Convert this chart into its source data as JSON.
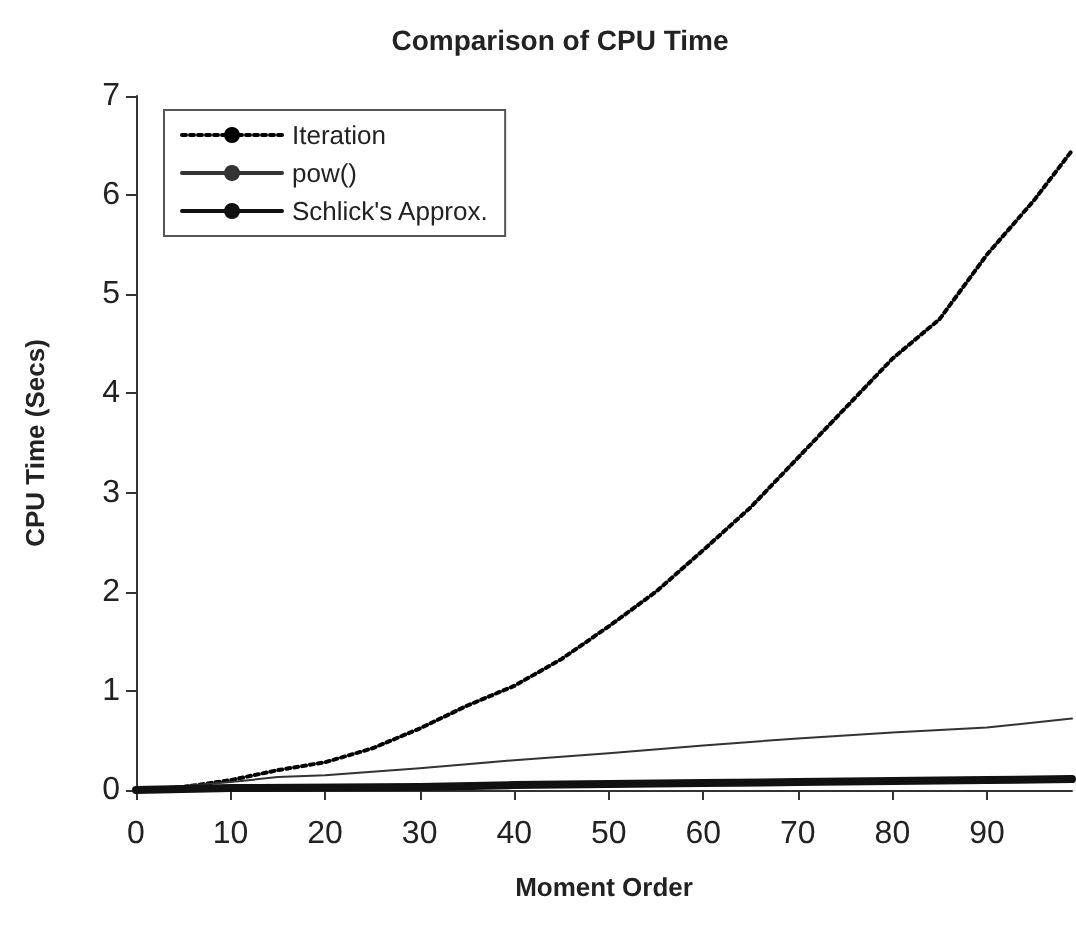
{
  "chart_data": {
    "type": "line",
    "title": "Comparison of CPU Time",
    "xlabel": "Moment Order",
    "ylabel": "CPU Time (Secs)",
    "xlim": [
      0,
      99
    ],
    "xticks": [
      0,
      10,
      20,
      30,
      40,
      50,
      60,
      70,
      80,
      90
    ],
    "ylim": [
      0,
      7
    ],
    "yticks": [
      0,
      1,
      2,
      3,
      4,
      5,
      6,
      7
    ],
    "grid": false,
    "legend": "top left",
    "marker": "none",
    "series": [
      {
        "name": "Iteration",
        "color": "#000000",
        "line_style": "dotted",
        "x": [
          0,
          5,
          10,
          15,
          20,
          25,
          30,
          35,
          40,
          45,
          50,
          55,
          60,
          65,
          70,
          75,
          80,
          85,
          90,
          95,
          99
        ],
        "values": [
          0,
          0.03,
          0.1,
          0.2,
          0.28,
          0.42,
          0.62,
          0.85,
          1.05,
          1.32,
          1.65,
          2.0,
          2.42,
          2.85,
          3.35,
          3.85,
          4.35,
          4.75,
          5.4,
          5.95,
          6.45
        ]
      },
      {
        "name": "pow()",
        "color": "#333333",
        "line_style": "solid",
        "x": [
          0,
          10,
          15,
          20,
          30,
          40,
          50,
          60,
          70,
          80,
          90,
          99
        ],
        "values": [
          0,
          0.08,
          0.13,
          0.15,
          0.22,
          0.3,
          0.37,
          0.45,
          0.52,
          0.58,
          0.63,
          0.72
        ]
      },
      {
        "name": "Schlick's Approx.",
        "color": "#111111",
        "line_style": "solid",
        "x": [
          0,
          10,
          30,
          40,
          60,
          70,
          90,
          99
        ],
        "values": [
          0,
          0.02,
          0.03,
          0.05,
          0.07,
          0.08,
          0.1,
          0.11
        ]
      }
    ]
  }
}
